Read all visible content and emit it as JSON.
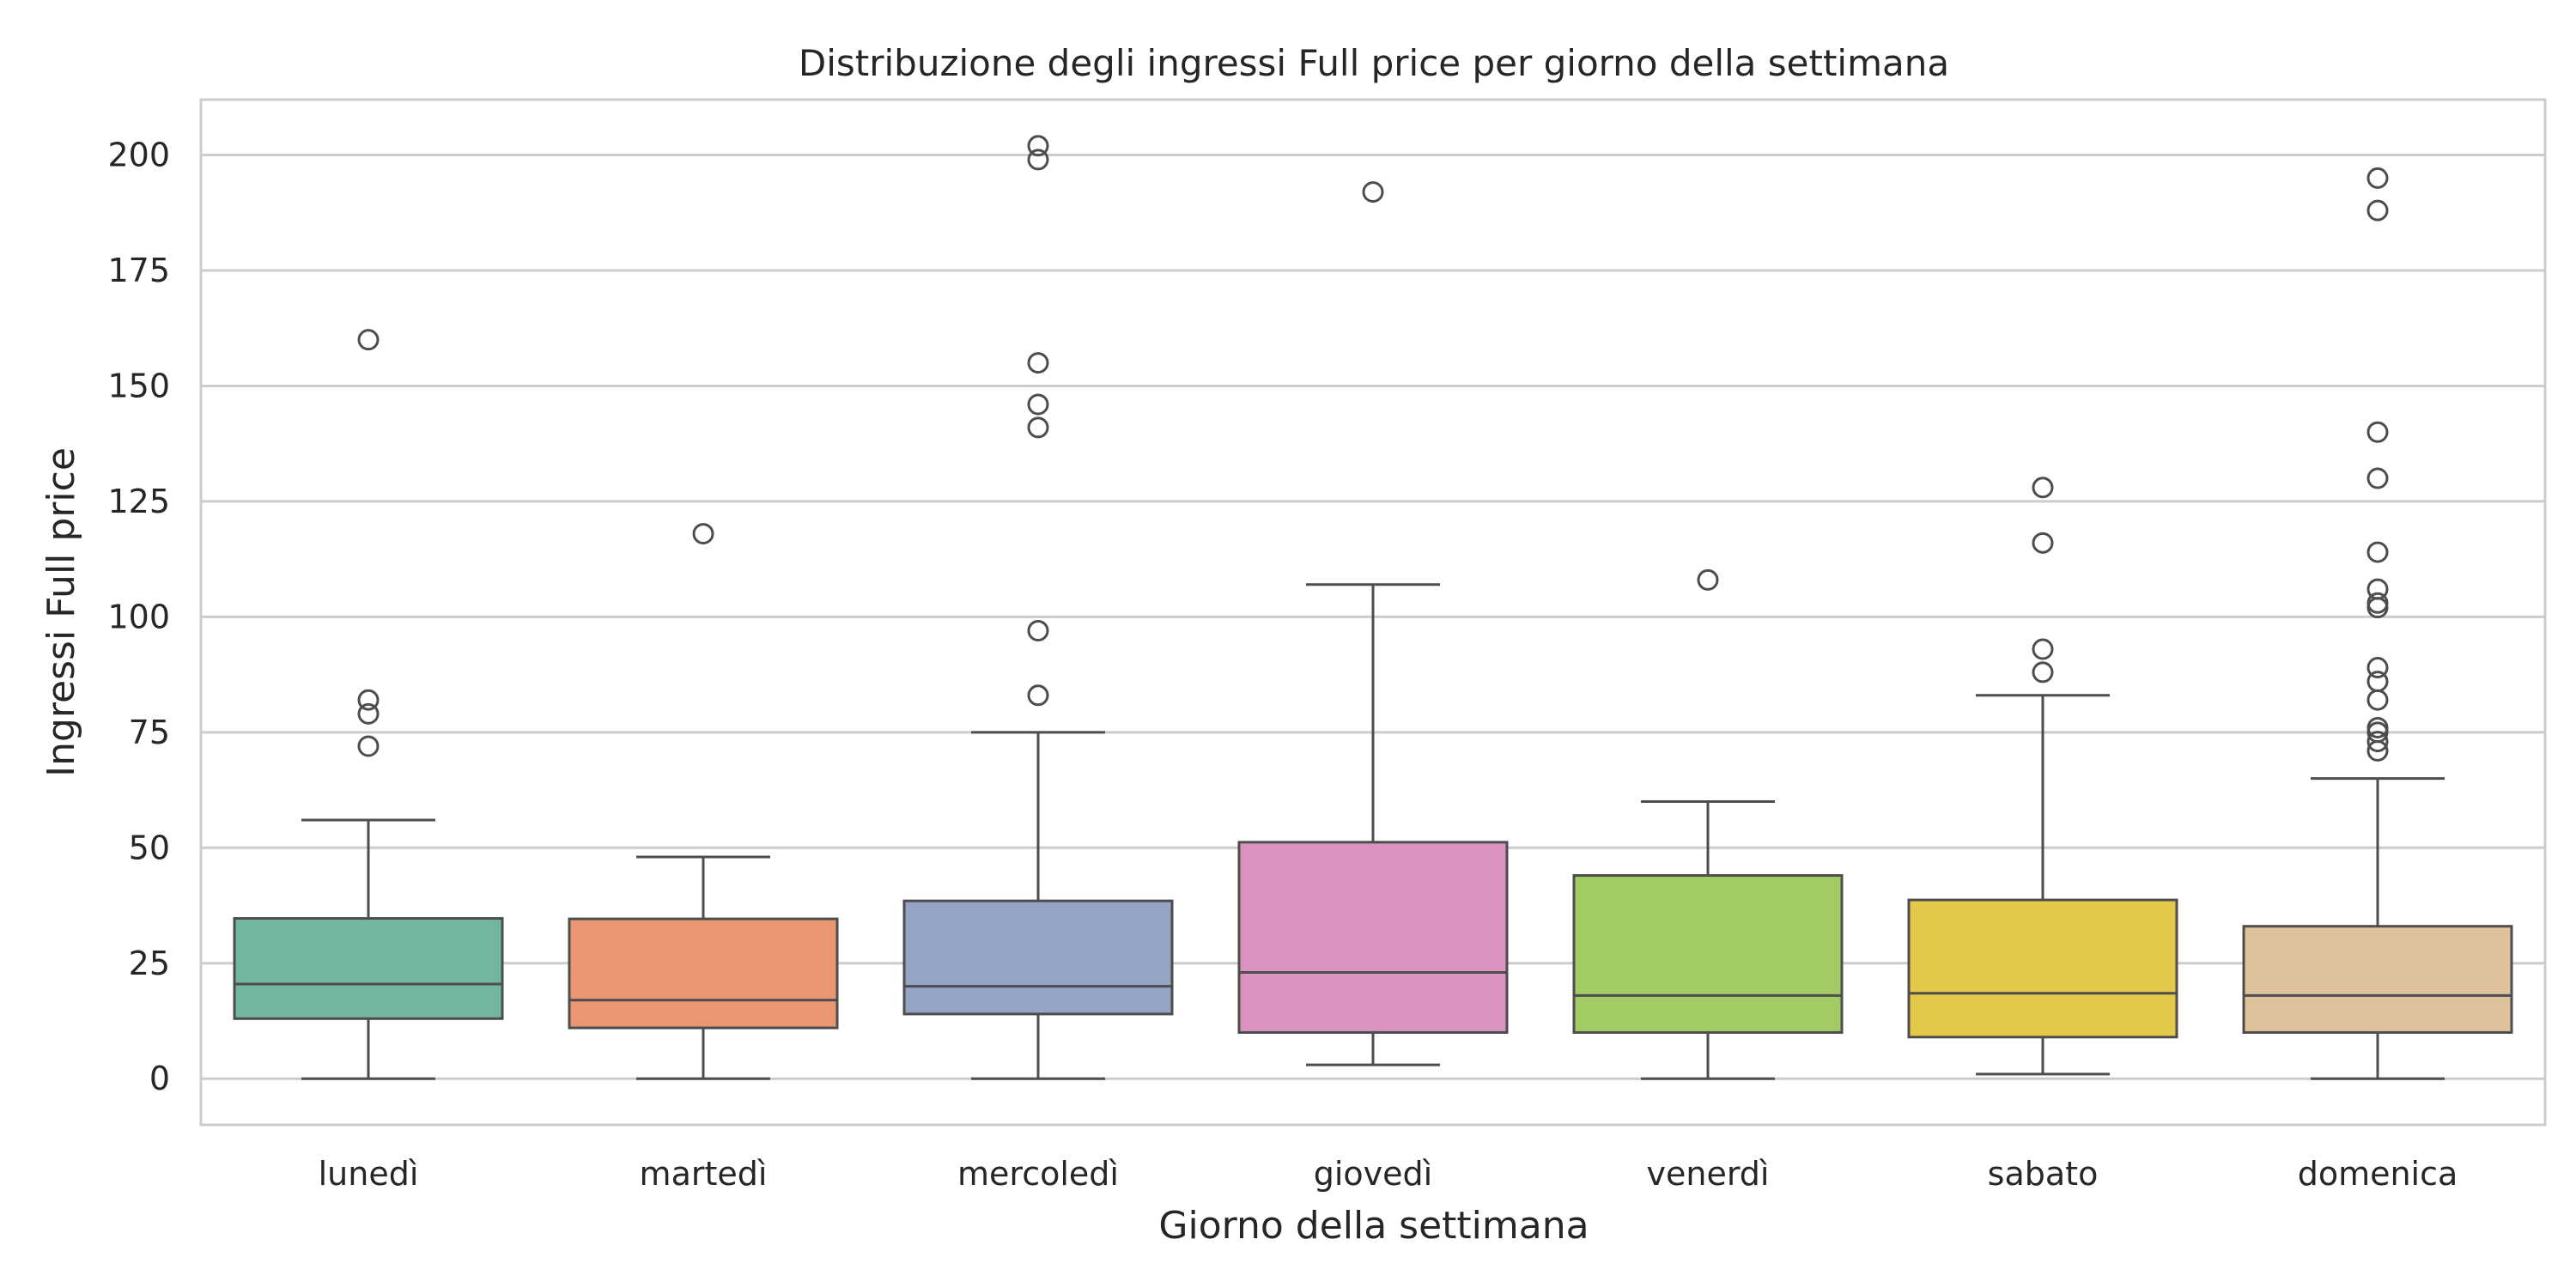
{
  "chart_data": {
    "type": "box",
    "title": "Distribuzione degli ingressi Full price per giorno della settimana",
    "xlabel": "Giorno della settimana",
    "ylabel": "Ingressi Full price",
    "ylim": [
      -10,
      212
    ],
    "yticks": [
      0,
      25,
      50,
      75,
      100,
      125,
      150,
      175,
      200
    ],
    "grid": true,
    "categories": [
      "lunedì",
      "martedì",
      "mercoledì",
      "giovedì",
      "venerdì",
      "sabato",
      "domenica"
    ],
    "boxes": [
      {
        "category": "lunedì",
        "whisker_low": 0,
        "q1": 13,
        "median": 20.5,
        "q3": 34.7,
        "whisker_high": 56,
        "outliers": [
          72,
          79,
          82,
          160
        ],
        "color": "#73B6A0"
      },
      {
        "category": "martedì",
        "whisker_low": 0,
        "q1": 11,
        "median": 17,
        "q3": 34.6,
        "whisker_high": 48,
        "outliers": [
          118
        ],
        "color": "#EA9672"
      },
      {
        "category": "mercoledì",
        "whisker_low": 0,
        "q1": 14,
        "median": 20,
        "q3": 38.5,
        "whisker_high": 75,
        "outliers": [
          83,
          97,
          141,
          146,
          155,
          199,
          202
        ],
        "color": "#95A4C4"
      },
      {
        "category": "giovedì",
        "whisker_low": 3,
        "q1": 10,
        "median": 23,
        "q3": 51.2,
        "whisker_high": 107,
        "outliers": [
          192
        ],
        "color": "#DA93BE"
      },
      {
        "category": "venerdì",
        "whisker_low": 0,
        "q1": 10,
        "median": 18,
        "q3": 44,
        "whisker_high": 60,
        "outliers": [
          108
        ],
        "color": "#A2CA65"
      },
      {
        "category": "sabato",
        "whisker_low": 1,
        "q1": 9,
        "median": 18.5,
        "q3": 38.7,
        "whisker_high": 83,
        "outliers": [
          88,
          93,
          116,
          128
        ],
        "color": "#E4C847"
      },
      {
        "category": "domenica",
        "whisker_low": 0,
        "q1": 10,
        "median": 18,
        "q3": 33,
        "whisker_high": 65,
        "outliers": [
          71,
          73,
          75,
          76,
          82,
          86,
          89,
          102,
          103,
          106,
          114,
          130,
          140,
          188,
          195
        ],
        "color": "#DDC29B"
      }
    ]
  }
}
